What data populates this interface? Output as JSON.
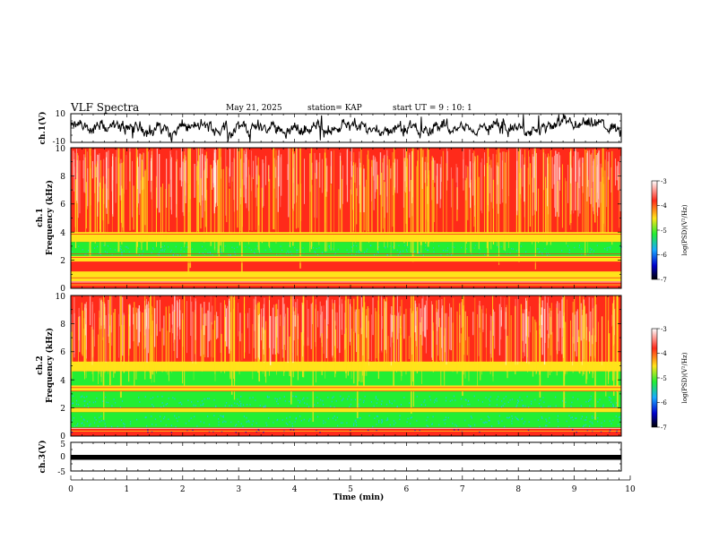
{
  "header": {
    "title": "VLF Spectra",
    "date": "May 21, 2025",
    "station": "station= KAP",
    "start_ut": "start  UT =   9 : 10: 1"
  },
  "chart_data": [
    {
      "type": "line",
      "name": "ch1-waveform",
      "ylabel": "ch.1(V)",
      "ylim": [
        -10,
        10
      ],
      "y_ticks": [
        "10",
        "-10"
      ],
      "xlim": [
        0,
        10
      ]
    },
    {
      "type": "heatmap",
      "name": "ch1-spectrogram",
      "ylabel": [
        "ch.1",
        "Frequency (kHz)"
      ],
      "ylim": [
        0,
        10
      ],
      "y_ticks": [
        "0",
        "2",
        "4",
        "6",
        "8",
        "10"
      ],
      "xlim": [
        0,
        10
      ],
      "colorbar": {
        "label": "log(PSD)(V²/Hz)",
        "range": [
          -7,
          -3
        ],
        "ticks": [
          "-3",
          "-4",
          "-5",
          "-6",
          "-7"
        ]
      }
    },
    {
      "type": "heatmap",
      "name": "ch2-spectrogram",
      "ylabel": [
        "ch.2",
        "Frequency (kHz)"
      ],
      "ylim": [
        0,
        10
      ],
      "y_ticks": [
        "0",
        "2",
        "4",
        "6",
        "8",
        "10"
      ],
      "xlim": [
        0,
        10
      ],
      "colorbar": {
        "label": "log(PSD)(V²/Hz)",
        "range": [
          -7,
          -3
        ],
        "ticks": [
          "-3",
          "-4",
          "-5",
          "-6",
          "-7"
        ]
      }
    },
    {
      "type": "line",
      "name": "ch3-waveform",
      "ylabel": "ch.3(V)",
      "ylim": [
        -5,
        5
      ],
      "y_ticks": [
        "5",
        "0",
        "-5"
      ],
      "xlim": [
        0,
        10
      ],
      "xlabel": "Time (min)",
      "x_ticks": [
        "0",
        "1",
        "2",
        "3",
        "4",
        "5",
        "6",
        "7",
        "8",
        "9",
        "10"
      ]
    }
  ],
  "colors": {
    "sat": "#ff2a1a",
    "high": "#ffe31a",
    "mid": "#22ee33",
    "low": "#1fc7ff",
    "floor": "#0000cc",
    "trace": "#000000"
  }
}
